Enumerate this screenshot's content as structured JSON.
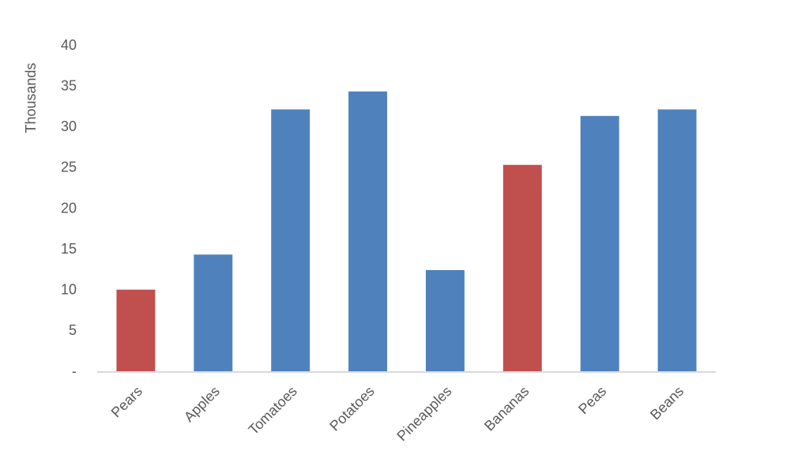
{
  "chart_data": {
    "type": "bar",
    "y_axis_label": "Thousands",
    "categories": [
      "Pears",
      "Apples",
      "Tomatoes",
      "Potatoes",
      "Pineapples",
      "Bananas",
      "Peas",
      "Beans"
    ],
    "values": [
      10.1,
      14.4,
      32.2,
      34.4,
      12.5,
      25.4,
      31.4,
      32.2
    ],
    "colors": [
      "#c0504d",
      "#4f81bd",
      "#4f81bd",
      "#4f81bd",
      "#4f81bd",
      "#c0504d",
      "#4f81bd",
      "#4f81bd"
    ],
    "ylim": [
      0,
      40
    ],
    "yticks": [
      {
        "value": 0,
        "label": "-"
      },
      5,
      10,
      15,
      20,
      25,
      30,
      35,
      40
    ],
    "grid": false
  }
}
